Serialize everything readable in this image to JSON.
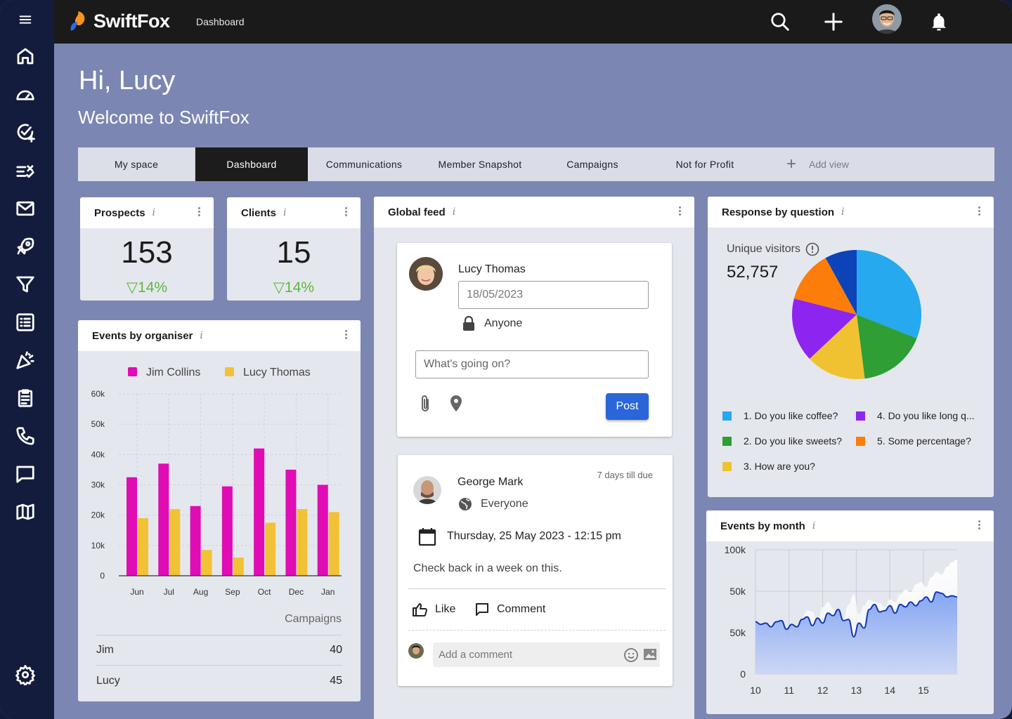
{
  "app": {
    "name": "SwiftFox",
    "breadcrumb": "Dashboard"
  },
  "sidebar": {
    "icons": [
      "menu-icon",
      "home-icon",
      "dashboard-gauge-icon",
      "task-add-icon",
      "checklist-icon",
      "mail-icon",
      "rocket-icon",
      "filter-icon",
      "list-icon",
      "celebration-icon",
      "clipboard-icon",
      "phone-icon",
      "chat-icon",
      "map-icon",
      "settings-icon"
    ]
  },
  "greeting": {
    "hello": "Hi, Lucy",
    "welcome": "Welcome to SwiftFox"
  },
  "tabs": [
    {
      "label": "My space"
    },
    {
      "label": "Dashboard"
    },
    {
      "label": "Communications"
    },
    {
      "label": "Member Snapshot"
    },
    {
      "label": "Campaigns"
    },
    {
      "label": "Not for Profit"
    }
  ],
  "add_view": "Add view",
  "prospects": {
    "title": "Prospects",
    "value": "153",
    "change": "▽14%"
  },
  "clients": {
    "title": "Clients",
    "value": "15",
    "change": "▽14%"
  },
  "events_by_organiser": {
    "title": "Events by organiser",
    "campaigns_label": "Campaigns",
    "rows": [
      {
        "name": "Jim",
        "value": "40"
      },
      {
        "name": "Lucy",
        "value": "45"
      }
    ]
  },
  "global_feed": {
    "title": "Global feed",
    "composer": {
      "user": "Lucy Thomas",
      "date": "18/05/2023",
      "audience": "Anyone",
      "placeholder": "What's going on?",
      "post_label": "Post"
    },
    "post": {
      "user": "George Mark",
      "due": "7 days till due",
      "audience": "Everyone",
      "datetime": "Thursday, 25 May 2023 - 12:15 pm",
      "text": "Check back in a week on this.",
      "like": "Like",
      "comment": "Comment",
      "comment_placeholder": "Add a comment"
    }
  },
  "response_by_question": {
    "title": "Response by question",
    "visitors_label": "Unique visitors",
    "visitors_value": "52,757",
    "legend": [
      {
        "label": "1. Do you like coffee?",
        "color": "#26a9ee"
      },
      {
        "label": "4. Do you like long q...",
        "color": "#8e24f0"
      },
      {
        "label": "2. Do you like sweets?",
        "color": "#2e9e35"
      },
      {
        "label": "5. Some percentage?",
        "color": "#fc7d09"
      },
      {
        "label": "3. How are you?",
        "color": "#f0c232"
      }
    ]
  },
  "events_by_month": {
    "title": "Events by month"
  },
  "chart_data": [
    {
      "type": "bar",
      "categories": [
        "Jun",
        "Jul",
        "Aug",
        "Sep",
        "Oct",
        "Dec",
        "Jan"
      ],
      "series": [
        {
          "name": "Jim Collins",
          "color": "#e00cb4",
          "values": [
            32500,
            37000,
            23000,
            29500,
            42000,
            35000,
            30000
          ]
        },
        {
          "name": "Lucy Thomas",
          "color": "#f1c236",
          "values": [
            19000,
            22000,
            8500,
            6000,
            17500,
            22000,
            21000
          ]
        }
      ],
      "yticks": [
        "60k",
        "50k",
        "40k",
        "30k",
        "20k",
        "10k",
        "0"
      ],
      "ylim": [
        0,
        60000
      ]
    },
    {
      "type": "pie",
      "slices": [
        {
          "label": "1. Do you like coffee?",
          "value": 31,
          "color": "#26a9ee"
        },
        {
          "label": "2. Do you like sweets?",
          "value": 17,
          "color": "#2e9e35"
        },
        {
          "label": "3. How are you?",
          "value": 15,
          "color": "#f0c232"
        },
        {
          "label": "4. Do you like long q...",
          "value": 16,
          "color": "#8e24f0"
        },
        {
          "label": "5. Some percentage?",
          "value": 13,
          "color": "#fc7d09"
        },
        {
          "label": "",
          "value": 8,
          "color": "#0c43b8"
        }
      ]
    },
    {
      "type": "area",
      "xticks": [
        "10",
        "11",
        "12",
        "13",
        "14",
        "15"
      ],
      "yticks": [
        "100k",
        "50k",
        "50k",
        "0"
      ],
      "ylim": [
        0,
        100000
      ],
      "series": [
        {
          "values": [
            42,
            40,
            41,
            38,
            42,
            43,
            36,
            40,
            38,
            44,
            46,
            39,
            45,
            41,
            49,
            47,
            52,
            43,
            44,
            30,
            41,
            37,
            52,
            56,
            50,
            51,
            55,
            49,
            56,
            54,
            58,
            55,
            59,
            62,
            58,
            66,
            65,
            62,
            63,
            62
          ]
        },
        {
          "values": [
            42,
            38,
            30,
            40,
            33,
            38,
            28,
            35,
            31,
            45,
            51,
            50,
            42,
            54,
            58,
            53,
            38,
            44,
            56,
            64,
            48,
            55,
            60,
            58,
            57,
            54,
            60,
            58,
            64,
            68,
            66,
            72,
            74,
            70,
            78,
            82,
            80,
            86,
            90,
            92
          ]
        }
      ]
    }
  ]
}
